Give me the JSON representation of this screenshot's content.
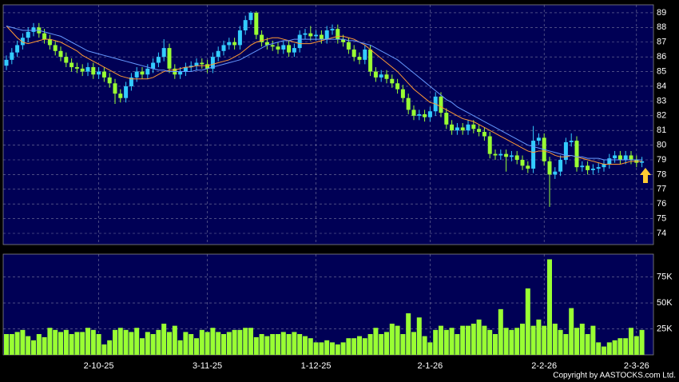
{
  "chart_data": [
    {
      "type": "candlestick",
      "categories": [
        null,
        null,
        null,
        null,
        null,
        null,
        null,
        null,
        null,
        null,
        null,
        null,
        null,
        null,
        null,
        null,
        null,
        "2-10-25",
        null,
        null,
        null,
        null,
        null,
        null,
        null,
        null,
        null,
        null,
        null,
        null,
        null,
        null,
        null,
        null,
        null,
        null,
        null,
        "3-11-25",
        null,
        null,
        null,
        null,
        null,
        null,
        null,
        null,
        null,
        null,
        null,
        null,
        null,
        null,
        null,
        null,
        null,
        null,
        null,
        "1-12-25",
        null,
        null,
        null,
        null,
        null,
        null,
        null,
        null,
        null,
        null,
        null,
        null,
        null,
        null,
        null,
        null,
        null,
        null,
        null,
        null,
        "2-1-26",
        null,
        null,
        null,
        null,
        null,
        null,
        null,
        null,
        null,
        null,
        null,
        null,
        null,
        null,
        null,
        null,
        null,
        null,
        null,
        null,
        "2-2-26",
        null,
        null,
        null,
        null,
        null,
        null,
        null,
        null,
        null,
        null,
        null,
        null,
        null,
        null,
        null,
        null,
        "2-3-26",
        null
      ],
      "open": [
        85.4,
        85.8,
        86.3,
        86.8,
        87.3,
        87.7,
        88.0,
        87.6,
        87.2,
        86.8,
        86.4,
        86.0,
        85.6,
        85.3,
        85.2,
        85.0,
        85.3,
        84.8,
        85.0,
        84.6,
        84.2,
        83.5,
        83.2,
        84.0,
        84.6,
        85.0,
        84.8,
        85.2,
        85.6,
        86.0,
        86.6,
        85.2,
        84.8,
        85.0,
        85.3,
        85.4,
        85.6,
        85.5,
        85.2,
        86.0,
        86.4,
        86.8,
        87.0,
        86.8,
        87.8,
        88.5,
        89.0,
        87.5,
        87.0,
        86.8,
        86.7,
        86.5,
        86.8,
        86.3,
        86.6,
        87.5,
        87.6,
        87.4,
        87.5,
        87.2,
        87.8,
        87.9,
        87.2,
        87.0,
        86.5,
        86.0,
        85.8,
        86.5,
        85.0,
        84.6,
        84.8,
        84.5,
        84.2,
        83.8,
        83.2,
        82.4,
        82.0,
        82.1,
        81.9,
        82.3,
        83.3,
        82.2,
        81.4,
        81.0,
        81.2,
        81.0,
        81.4,
        81.1,
        80.9,
        80.6,
        79.4,
        79.3,
        79.4,
        79.2,
        79.3,
        79.0,
        78.6,
        78.4,
        80.3,
        80.5,
        78.9,
        78.0,
        78.2,
        79.0,
        80.2,
        80.3,
        78.5,
        78.6,
        78.3,
        78.4,
        78.5,
        78.7,
        79.1,
        79.3,
        79.0,
        79.3,
        79.0,
        78.8
      ],
      "high": [
        86.1,
        86.6,
        87.1,
        87.6,
        88.0,
        88.3,
        88.3,
        87.9,
        87.5,
        87.1,
        86.7,
        86.3,
        85.9,
        85.6,
        85.5,
        85.6,
        85.6,
        85.3,
        85.3,
        84.9,
        84.5,
        83.8,
        84.3,
        84.9,
        85.3,
        85.3,
        85.5,
        85.9,
        86.3,
        87.2,
        86.9,
        85.5,
        85.3,
        85.6,
        85.7,
        85.9,
        85.9,
        85.8,
        86.3,
        86.7,
        87.1,
        87.3,
        87.3,
        88.1,
        88.8,
        89.1,
        89.1,
        87.8,
        87.3,
        87.1,
        87.0,
        87.1,
        87.1,
        86.9,
        87.8,
        87.9,
        88.1,
        87.8,
        87.8,
        88.1,
        88.2,
        88.2,
        87.5,
        87.3,
        86.8,
        86.3,
        86.8,
        86.8,
        85.3,
        85.1,
        85.1,
        84.8,
        84.5,
        84.1,
        83.5,
        82.7,
        82.4,
        82.4,
        82.6,
        83.6,
        83.6,
        82.5,
        81.7,
        81.5,
        81.5,
        81.7,
        81.7,
        81.4,
        81.2,
        80.9,
        79.7,
        79.7,
        79.7,
        79.6,
        79.6,
        79.3,
        78.9,
        81.3,
        80.8,
        80.8,
        79.2,
        78.5,
        79.3,
        80.5,
        80.8,
        80.6,
        78.9,
        78.9,
        78.7,
        78.8,
        79.0,
        79.4,
        79.6,
        79.6,
        79.6,
        79.6,
        79.3,
        79.2
      ],
      "low": [
        85.1,
        85.5,
        86.0,
        86.5,
        87.0,
        87.4,
        87.3,
        86.9,
        86.5,
        86.1,
        85.7,
        85.3,
        85.0,
        84.9,
        84.7,
        84.7,
        84.5,
        84.5,
        84.3,
        83.9,
        82.8,
        82.9,
        82.9,
        83.7,
        84.3,
        84.5,
        84.5,
        84.9,
        85.3,
        85.7,
        84.9,
        84.5,
        84.5,
        84.7,
        85.0,
        85.1,
        85.2,
        84.9,
        84.9,
        85.7,
        86.1,
        86.5,
        86.5,
        86.5,
        87.5,
        88.2,
        87.2,
        86.7,
        86.5,
        86.4,
        86.2,
        86.2,
        86.0,
        86.0,
        86.3,
        87.2,
        87.1,
        87.1,
        86.9,
        86.9,
        87.5,
        86.9,
        86.7,
        86.2,
        85.7,
        85.5,
        85.5,
        84.7,
        84.3,
        84.3,
        84.2,
        83.9,
        83.5,
        82.9,
        82.1,
        81.7,
        81.7,
        81.6,
        81.6,
        82.0,
        81.9,
        81.1,
        80.7,
        80.7,
        80.7,
        80.7,
        80.8,
        80.6,
        80.3,
        79.1,
        79.0,
        79.0,
        78.2,
        78.9,
        78.7,
        78.3,
        78.1,
        78.1,
        80.0,
        78.6,
        75.8,
        77.7,
        77.9,
        78.7,
        79.9,
        78.2,
        78.2,
        78.0,
        78.0,
        78.1,
        78.2,
        78.4,
        78.8,
        78.7,
        78.7,
        78.7,
        78.5,
        78.5
      ],
      "close": [
        85.8,
        86.3,
        86.8,
        87.3,
        87.7,
        88.0,
        87.6,
        87.2,
        86.8,
        86.4,
        86.0,
        85.6,
        85.3,
        85.2,
        85.0,
        85.3,
        84.8,
        85.0,
        84.6,
        84.2,
        83.5,
        83.2,
        84.0,
        84.6,
        85.0,
        84.8,
        85.2,
        85.6,
        86.0,
        86.6,
        85.2,
        84.8,
        85.0,
        85.3,
        85.4,
        85.6,
        85.5,
        85.2,
        86.0,
        86.4,
        86.8,
        87.0,
        86.8,
        87.8,
        88.5,
        89.0,
        87.5,
        87.0,
        86.8,
        86.7,
        86.5,
        86.8,
        86.3,
        86.6,
        87.5,
        87.6,
        87.4,
        87.5,
        87.2,
        87.8,
        87.9,
        87.2,
        87.0,
        86.5,
        86.0,
        85.8,
        86.5,
        85.0,
        84.6,
        84.8,
        84.5,
        84.2,
        83.8,
        83.2,
        82.4,
        82.0,
        82.1,
        81.9,
        82.3,
        83.3,
        82.2,
        81.4,
        81.0,
        81.2,
        81.0,
        81.4,
        81.1,
        80.9,
        80.6,
        79.4,
        79.3,
        79.4,
        79.2,
        79.3,
        79.0,
        78.6,
        78.4,
        80.3,
        80.5,
        78.9,
        78.0,
        78.2,
        79.0,
        80.2,
        80.3,
        78.5,
        78.6,
        78.3,
        78.4,
        78.5,
        78.7,
        79.1,
        79.3,
        79.0,
        79.3,
        79.0,
        78.8,
        78.9
      ],
      "up_color": "#33ccff",
      "down_color": "#99ff33",
      "series": [
        {
          "color": "#ff9933",
          "values": [
            88.1,
            87.7,
            87.3,
            87.0,
            86.9,
            87.0,
            87.1,
            87.2,
            87.2,
            87.1,
            87.0,
            86.8,
            86.6,
            86.4,
            86.1,
            85.9,
            85.7,
            85.5,
            85.3,
            85.1,
            84.9,
            84.7,
            84.6,
            84.5,
            84.5,
            84.5,
            84.5,
            84.6,
            84.8,
            85.0,
            85.1,
            85.1,
            85.2,
            85.3,
            85.3,
            85.4,
            85.4,
            85.4,
            85.5,
            85.6,
            85.7,
            85.8,
            86.0,
            86.2,
            86.5,
            86.8,
            87.0,
            87.1,
            87.2,
            87.3,
            87.3,
            87.2,
            87.1,
            87.0,
            86.9,
            86.9,
            86.9,
            87.0,
            87.1,
            87.2,
            87.3,
            87.4,
            87.4,
            87.3,
            87.2,
            87.0,
            86.8,
            86.5,
            86.2,
            85.9,
            85.6,
            85.3,
            85.0,
            84.6,
            84.2,
            83.8,
            83.5,
            83.2,
            82.9,
            82.8,
            82.6,
            82.4,
            82.2,
            82.0,
            81.8,
            81.7,
            81.6,
            81.4,
            81.2,
            81.0,
            80.8,
            80.6,
            80.4,
            80.2,
            80.0,
            79.8,
            79.6,
            79.5,
            79.6,
            79.6,
            79.5,
            79.3,
            79.2,
            79.2,
            79.3,
            79.2,
            79.1,
            79.0,
            78.9,
            78.8,
            78.7,
            78.7,
            78.7,
            78.7,
            78.8,
            78.9,
            78.9,
            78.9
          ]
        },
        {
          "color": "#6699ff",
          "values": [
            88.1,
            88.0,
            87.9,
            87.8,
            87.8,
            87.8,
            87.8,
            87.7,
            87.6,
            87.5,
            87.4,
            87.2,
            87.0,
            86.8,
            86.6,
            86.4,
            86.3,
            86.2,
            86.1,
            86.0,
            85.9,
            85.8,
            85.7,
            85.6,
            85.5,
            85.4,
            85.3,
            85.2,
            85.1,
            85.1,
            85.0,
            85.0,
            85.0,
            85.0,
            85.0,
            85.1,
            85.1,
            85.2,
            85.3,
            85.4,
            85.5,
            85.6,
            85.7,
            85.8,
            86.0,
            86.2,
            86.4,
            86.6,
            86.8,
            86.9,
            87.0,
            87.1,
            87.1,
            87.2,
            87.2,
            87.2,
            87.2,
            87.2,
            87.2,
            87.2,
            87.2,
            87.2,
            87.2,
            87.1,
            87.1,
            87.0,
            86.9,
            86.8,
            86.6,
            86.4,
            86.2,
            86.0,
            85.8,
            85.5,
            85.2,
            84.9,
            84.6,
            84.3,
            84.0,
            83.7,
            83.4,
            83.1,
            82.9,
            82.6,
            82.4,
            82.2,
            82.0,
            81.8,
            81.6,
            81.4,
            81.2,
            81.0,
            80.8,
            80.6,
            80.4,
            80.2,
            80.0,
            79.9,
            79.8,
            79.7,
            79.6,
            79.5,
            79.4,
            79.3,
            79.3,
            79.2,
            79.2,
            79.1,
            79.1,
            79.1,
            79.0,
            79.0,
            79.0,
            79.0,
            79.0,
            79.0,
            79.0,
            79.0
          ]
        }
      ],
      "ylim": [
        73.24,
        89.54
      ],
      "yticks": [
        74,
        75,
        76,
        77,
        78,
        79,
        80,
        81,
        82,
        83,
        84,
        85,
        86,
        87,
        88,
        89
      ],
      "grid": true
    },
    {
      "type": "bar",
      "color": "#99ff33",
      "values": [
        20000,
        20000,
        22000,
        24000,
        18000,
        14000,
        20000,
        17000,
        26000,
        24000,
        22000,
        24000,
        20000,
        22000,
        22000,
        26000,
        24000,
        20000,
        10000,
        14000,
        24000,
        26000,
        24000,
        22000,
        26000,
        16000,
        22000,
        20000,
        24000,
        30000,
        22000,
        28000,
        14000,
        22000,
        20000,
        16000,
        24000,
        22000,
        26000,
        22000,
        20000,
        22000,
        24000,
        24000,
        26000,
        26000,
        17000,
        20000,
        18000,
        20000,
        20000,
        22000,
        20000,
        22000,
        20000,
        18000,
        16000,
        12000,
        12000,
        14000,
        12000,
        10000,
        12000,
        16000,
        16000,
        18000,
        16000,
        20000,
        26000,
        20000,
        22000,
        30000,
        28000,
        20000,
        40000,
        22000,
        36000,
        18000,
        12000,
        24000,
        28000,
        24000,
        26000,
        20000,
        28000,
        28000,
        30000,
        34000,
        28000,
        24000,
        20000,
        44000,
        26000,
        24000,
        26000,
        30000,
        64000,
        28000,
        34000,
        28000,
        92000,
        30000,
        24000,
        20000,
        45000,
        26000,
        30000,
        20000,
        28000,
        12000,
        8000,
        12000,
        14000,
        16000,
        16000,
        26000,
        18000,
        24000
      ],
      "ylim": [
        0,
        97000
      ],
      "yticks": [
        {
          "value": 25000,
          "label": "25K"
        },
        {
          "value": 50000,
          "label": "50K"
        },
        {
          "value": 75000,
          "label": "75K"
        }
      ],
      "grid": true
    }
  ],
  "copyright": "Copyright by AASTOCKS.com Ltd."
}
